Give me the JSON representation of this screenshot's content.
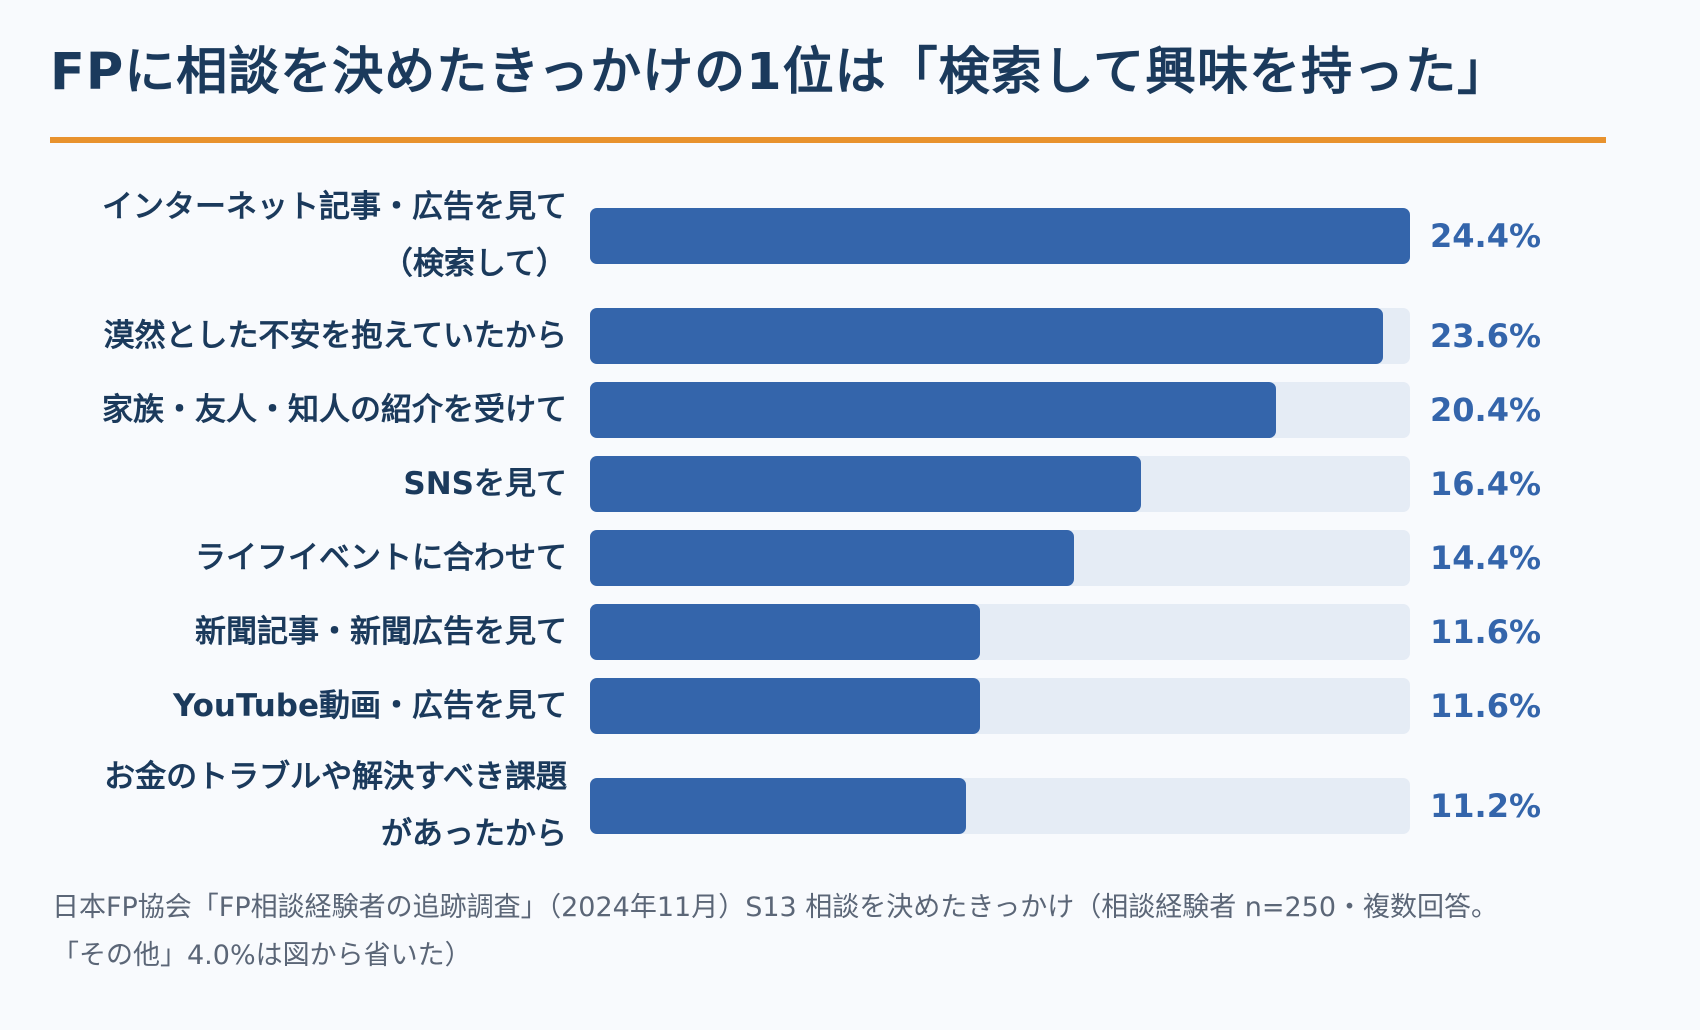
{
  "title": "FPに相談を決めたきっかけの1位は「検索して興味を持った」",
  "colors": {
    "title": "#1b3a5c",
    "rule": "#e8922e",
    "bar": "#3465ab",
    "track": "#e5ecf5",
    "value_text": "#3465ab",
    "note_text": "#5b6677",
    "background": "#f8fafd"
  },
  "chart_data": {
    "type": "bar",
    "orientation": "horizontal",
    "title": "FPに相談を決めたきっかけの1位は「検索して興味を持った」",
    "xlabel": "",
    "ylabel": "",
    "unit": "%",
    "xlim": [
      0,
      24.4
    ],
    "grid": false,
    "legend": "none",
    "categories": [
      [
        "インターネット記事・広告を見て",
        "（検索して）"
      ],
      [
        "漠然とした不安を抱えていたから"
      ],
      [
        "家族・友人・知人の紹介を受けて"
      ],
      [
        "SNSを見て"
      ],
      [
        "ライフイベントに合わせて"
      ],
      [
        "新聞記事・新聞広告を見て"
      ],
      [
        "YouTube動画・広告を見て"
      ],
      [
        "お金のトラブルや解決すべき課題",
        "があったから"
      ]
    ],
    "values": [
      24.4,
      23.6,
      20.4,
      16.4,
      14.4,
      11.6,
      11.6,
      11.2
    ],
    "value_labels": [
      "24.4%",
      "23.6%",
      "20.4%",
      "16.4%",
      "14.4%",
      "11.6%",
      "11.6%",
      "11.2%"
    ]
  },
  "note": {
    "line1": "日本FP協会「FP相談経験者の追跡調査」（2024年11月）S13 相談を決めたきっかけ（相談経験者 n=250・複数回答。",
    "line2": "「その他」4.0%は図から省いた）"
  }
}
